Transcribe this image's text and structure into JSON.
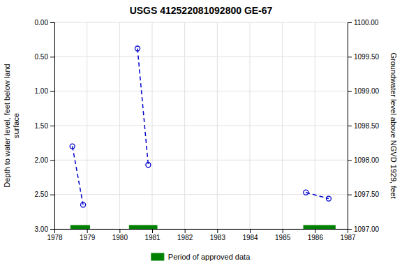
{
  "chart_data": {
    "type": "line",
    "title": "USGS 412522081092800 GE-67",
    "ylabel": "Depth to water level, feet below land\nsurface",
    "y2label": "Groundwater level above NGVD 1929, feet",
    "xlim": [
      1978,
      1987
    ],
    "ylim": [
      3.0,
      0.0
    ],
    "y2lim": [
      1097.0,
      1100.0
    ],
    "xticks": [
      1978,
      1979,
      1980,
      1981,
      1982,
      1983,
      1984,
      1985,
      1986,
      1987
    ],
    "yticks": [
      {
        "value": 0.0,
        "label": "0.00"
      },
      {
        "value": 0.5,
        "label": "0.50"
      },
      {
        "value": 1.0,
        "label": "1.00"
      },
      {
        "value": 1.5,
        "label": "1.50"
      },
      {
        "value": 2.0,
        "label": "2.00"
      },
      {
        "value": 2.5,
        "label": "2.50"
      },
      {
        "value": 3.0,
        "label": "3.00"
      }
    ],
    "y2ticks": [
      {
        "value": 1097.0,
        "label": "1097.00"
      },
      {
        "value": 1097.5,
        "label": "1097.50"
      },
      {
        "value": 1098.0,
        "label": "1098.00"
      },
      {
        "value": 1098.5,
        "label": "1098.50"
      },
      {
        "value": 1099.0,
        "label": "1099.00"
      },
      {
        "value": 1099.5,
        "label": "1099.50"
      },
      {
        "value": 1100.0,
        "label": "1100.00"
      }
    ],
    "grid": true,
    "legend": "bottom",
    "series": [
      {
        "x": [
          1978.55,
          1978.88
        ],
        "values": [
          1.8,
          2.65
        ],
        "color": "#0000cc",
        "line_style": "dashed",
        "marker": "circle"
      },
      {
        "x": [
          1980.55,
          1980.88
        ],
        "values": [
          0.38,
          2.07
        ],
        "color": "#0000cc",
        "line_style": "dashed",
        "marker": "circle"
      },
      {
        "x": [
          1985.72,
          1986.42
        ],
        "values": [
          2.47,
          2.56
        ],
        "color": "#0000cc",
        "line_style": "dashed",
        "marker": "circle"
      },
      {
        "name": "Period of approved data",
        "type": "range",
        "color": "#008000",
        "start": [
          1978.5,
          1980.3,
          1985.65
        ],
        "end": [
          1979.08,
          1981.15,
          1986.62
        ],
        "values": [
          3.0,
          3.0,
          3.0
        ]
      }
    ]
  }
}
